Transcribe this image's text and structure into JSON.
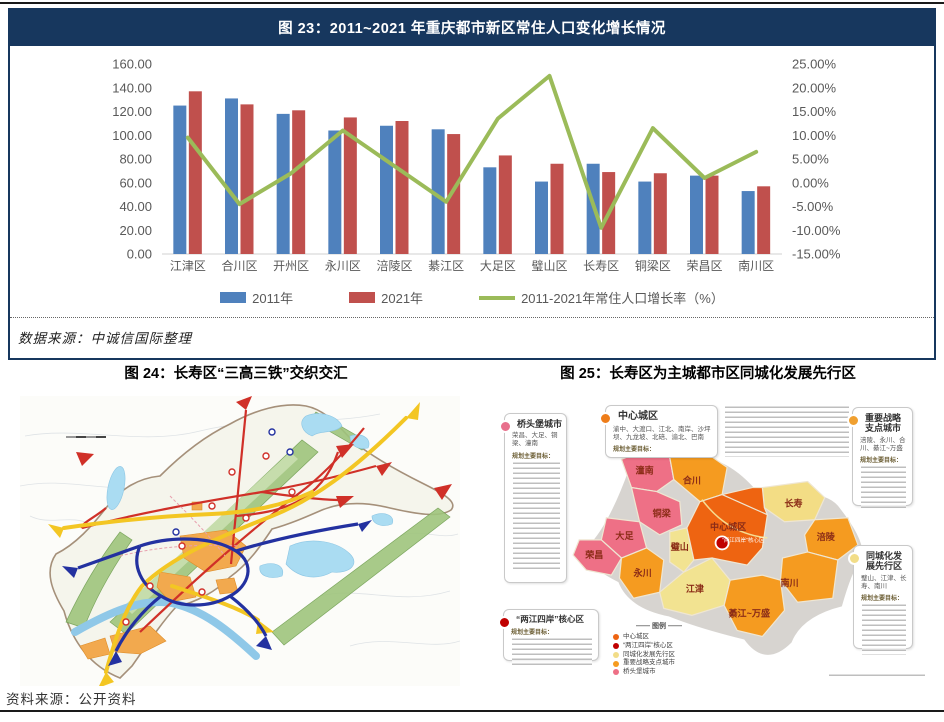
{
  "page": {
    "bottom_source": "资料来源：公开资料"
  },
  "fig23": {
    "title": "图 23：2011~2021 年重庆都市新区常住人口变化增长情况",
    "source": "数据来源：中诚信国际整理"
  },
  "chart_data": {
    "type": "bar",
    "title": "2011~2021 年重庆都市新区常住人口变化增长情况",
    "categories": [
      "江津区",
      "合川区",
      "开州区",
      "永川区",
      "涪陵区",
      "綦江区",
      "大足区",
      "璧山区",
      "长寿区",
      "铜梁区",
      "荣昌区",
      "南川区"
    ],
    "series": [
      {
        "name": "2011年",
        "type": "bar",
        "color": "#4F81BD",
        "axis": "left",
        "values": [
          125,
          131,
          118,
          104,
          108,
          105,
          73,
          61,
          76,
          61,
          66,
          53
        ]
      },
      {
        "name": "2021年",
        "type": "bar",
        "color": "#C0504D",
        "axis": "left",
        "values": [
          137,
          126,
          121,
          115,
          112,
          101,
          83,
          76,
          69,
          68,
          66,
          57
        ]
      },
      {
        "name": "2011-2021年常住人口增长率（%）",
        "type": "line",
        "color": "#9BBB59",
        "axis": "right",
        "values": [
          9.5,
          -4.5,
          2.0,
          11.0,
          3.5,
          -4.0,
          13.5,
          22.5,
          -9.5,
          11.5,
          1.0,
          6.5
        ]
      }
    ],
    "left_axis": {
      "min": 0,
      "max": 160,
      "step": 20,
      "format": "0.00"
    },
    "right_axis": {
      "min": -15,
      "max": 25,
      "step": 5,
      "format": "0.00%"
    },
    "grid": false,
    "legend_position": "bottom"
  },
  "fig24": {
    "caption": "图 24：长寿区“三高三铁”交织交汇",
    "map_colors": {
      "highway": "#D03028",
      "railway": "#F3C623",
      "expressway": "#2331A0",
      "river": "#8FC8E8",
      "ridge": "#9FC57D",
      "urban": "#F2A94E"
    }
  },
  "fig25": {
    "caption": "图 25：长寿区为主城都市区同城化发展先行区",
    "callouts": [
      {
        "title": "桥头堡城市",
        "cities": "荣昌、大足、铜梁、潼南",
        "goal_label": "规划主要目标：",
        "dot_color": "#E8708C"
      },
      {
        "title": "中心城区",
        "cities": "渝中、大渡口、江北、南岸、沙坪坝、九龙坡、北碚、渝北、巴南",
        "goal_label": "规划主要目标：",
        "dot_color": "#EE7D1A"
      },
      {
        "title": "重要战略支点城市",
        "cities": "涪陵、永川、合川、綦江~万盛",
        "goal_label": "规划主要目标：",
        "dot_color": "#F0A030"
      },
      {
        "title": "同城化发展先行区",
        "cities": "璧山、江津、长寿、南川",
        "goal_label": "规划主要目标：",
        "dot_color": "#F2DD88"
      },
      {
        "title": "“两江四岸”核心区",
        "cities": "",
        "goal_label": "规划主要目标：",
        "dot_color": "#C00000"
      }
    ],
    "legend": {
      "title": "图例",
      "items": [
        {
          "label": "中心城区",
          "color": "#EE6411"
        },
        {
          "label": "“两江四岸”核心区",
          "color": "#C00000"
        },
        {
          "label": "同城化发展先行区",
          "color": "#F2DD88"
        },
        {
          "label": "重要战略支点城市",
          "color": "#F59B20"
        },
        {
          "label": "桥头堡城市",
          "color": "#EE7086"
        }
      ]
    },
    "districts": [
      {
        "name": "潼南",
        "category": "桥头堡城市"
      },
      {
        "name": "合川",
        "category": "重要战略支点城市"
      },
      {
        "name": "长寿",
        "category": "同城化发展先行区"
      },
      {
        "name": "铜梁",
        "category": "桥头堡城市"
      },
      {
        "name": "大足",
        "category": "桥头堡城市"
      },
      {
        "name": "荣昌",
        "category": "桥头堡城市"
      },
      {
        "name": "永川",
        "category": "重要战略支点城市"
      },
      {
        "name": "璧山",
        "category": "同城化发展先行区"
      },
      {
        "name": "中心城区",
        "category": "中心城区"
      },
      {
        "name": "涪陵",
        "category": "重要战略支点城市"
      },
      {
        "name": "江津",
        "category": "同城化发展先行区"
      },
      {
        "name": "南川",
        "category": "同城化发展先行区"
      },
      {
        "name": "綦江~万盛",
        "category": "重要战略支点城市"
      }
    ],
    "core_marker_label": "“两江四岸”核心区"
  }
}
